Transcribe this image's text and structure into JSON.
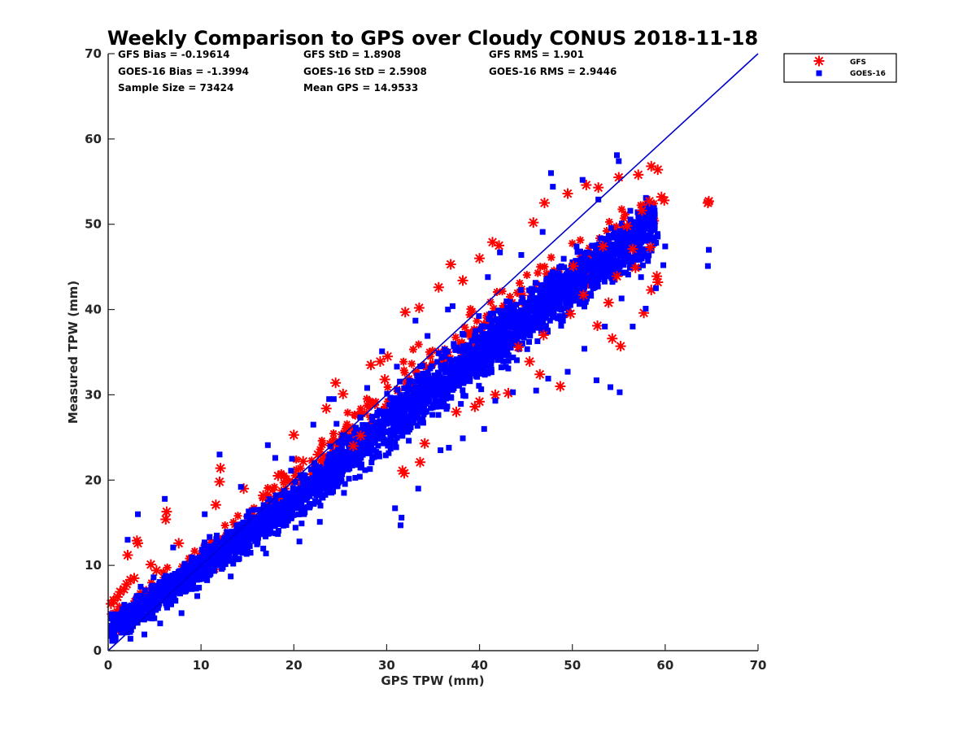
{
  "chart_data": {
    "type": "scatter",
    "title": "Weekly Comparison to GPS over Cloudy CONUS 2018-11-18",
    "xlabel": "GPS TPW (mm)",
    "ylabel": "Measured TPW (mm)",
    "xlim": [
      0,
      70
    ],
    "ylim": [
      0,
      70
    ],
    "xticks": [
      "0",
      "10",
      "20",
      "30",
      "40",
      "50",
      "60",
      "70"
    ],
    "yticks": [
      "0",
      "10",
      "20",
      "30",
      "40",
      "50",
      "60",
      "70"
    ],
    "grid": false,
    "legend_position": "outside-top-right",
    "stats": {
      "gfs_bias": "GFS Bias = -0.19614",
      "gfs_std": "GFS StD = 1.8908",
      "gfs_rms": "GFS RMS = 1.901",
      "goes_bias": "GOES-16 Bias = -1.3994",
      "goes_std": "GOES-16 StD = 2.5908",
      "goes_rms": "GOES-16 RMS = 2.9446",
      "sample_size": "Sample Size = 73424",
      "mean_gps": "Mean GPS = 14.9533"
    },
    "reference_line": {
      "label": "1:1",
      "from": [
        0,
        0
      ],
      "to": [
        70,
        70
      ],
      "color": "#0000cc"
    },
    "series": [
      {
        "name": "GFS",
        "marker": "asterisk",
        "color": "#ff0000",
        "points": [
          [
            0.3,
            5.5
          ],
          [
            0.6,
            5.9
          ],
          [
            1.0,
            6.3
          ],
          [
            1.3,
            6.9
          ],
          [
            1.7,
            7.2
          ],
          [
            2.0,
            7.8
          ],
          [
            2.4,
            8.3
          ],
          [
            2.8,
            8.5
          ],
          [
            2.1,
            11.2
          ],
          [
            3.2,
            12.6
          ],
          [
            3.1,
            12.9
          ],
          [
            6.2,
            15.4
          ],
          [
            6.3,
            16.3
          ],
          [
            7.6,
            12.6
          ],
          [
            4.6,
            10.1
          ],
          [
            5.2,
            9.4
          ],
          [
            12.0,
            19.8
          ],
          [
            12.1,
            21.4
          ],
          [
            16.7,
            18.2
          ],
          [
            20.0,
            25.3
          ],
          [
            24.5,
            31.4
          ],
          [
            22.6,
            23.0
          ],
          [
            27.2,
            25.2
          ],
          [
            26.4,
            24.0
          ],
          [
            28.3,
            33.5
          ],
          [
            29.3,
            33.9
          ],
          [
            30.1,
            34.5
          ],
          [
            31.7,
            21.1
          ],
          [
            31.9,
            20.8
          ],
          [
            33.6,
            22.1
          ],
          [
            34.1,
            24.3
          ],
          [
            29.8,
            31.8
          ],
          [
            32.0,
            39.7
          ],
          [
            33.5,
            40.2
          ],
          [
            35.6,
            42.6
          ],
          [
            36.9,
            45.3
          ],
          [
            38.2,
            43.4
          ],
          [
            40.0,
            46.0
          ],
          [
            41.4,
            47.9
          ],
          [
            42.1,
            47.5
          ],
          [
            37.5,
            28.0
          ],
          [
            39.5,
            28.6
          ],
          [
            40.0,
            29.2
          ],
          [
            41.7,
            30.0
          ],
          [
            43.1,
            30.2
          ],
          [
            45.4,
            33.9
          ],
          [
            46.5,
            32.4
          ],
          [
            48.7,
            31.0
          ],
          [
            45.8,
            50.2
          ],
          [
            47.0,
            52.5
          ],
          [
            49.5,
            53.6
          ],
          [
            51.5,
            54.6
          ],
          [
            52.8,
            54.3
          ],
          [
            55.0,
            55.5
          ],
          [
            57.1,
            55.8
          ],
          [
            58.5,
            56.8
          ],
          [
            59.2,
            56.4
          ],
          [
            59.6,
            53.2
          ],
          [
            59.9,
            52.8
          ],
          [
            58.3,
            52.7
          ],
          [
            57.5,
            51.6
          ],
          [
            58.4,
            47.3
          ],
          [
            59.1,
            43.9
          ],
          [
            59.2,
            43.2
          ],
          [
            58.5,
            42.3
          ],
          [
            57.7,
            39.6
          ],
          [
            55.2,
            35.7
          ],
          [
            54.3,
            36.6
          ],
          [
            52.7,
            38.1
          ],
          [
            53.9,
            40.8
          ],
          [
            54.8,
            43.9
          ],
          [
            56.8,
            44.9
          ],
          [
            64.6,
            52.5
          ],
          [
            64.7,
            52.7
          ],
          [
            11.6,
            17.1
          ],
          [
            14.6,
            19.0
          ],
          [
            18.3,
            20.5
          ],
          [
            21.0,
            22.2
          ],
          [
            23.5,
            28.4
          ],
          [
            25.3,
            30.1
          ],
          [
            44.2,
            35.6
          ],
          [
            46.9,
            37.0
          ],
          [
            49.8,
            39.5
          ],
          [
            51.2,
            41.7
          ],
          [
            53.3,
            47.4
          ],
          [
            55.9,
            49.8
          ],
          [
            56.5,
            47.1
          ],
          [
            50.1,
            45.1
          ]
        ]
      },
      {
        "name": "GOES-16",
        "marker": "square",
        "color": "#0000ff",
        "points": [
          [
            2.1,
            13.0
          ],
          [
            3.2,
            16.0
          ],
          [
            6.1,
            17.8
          ],
          [
            12.0,
            23.0
          ],
          [
            17.2,
            24.1
          ],
          [
            19.8,
            22.5
          ],
          [
            22.1,
            26.5
          ],
          [
            24.3,
            29.5
          ],
          [
            30.9,
            16.7
          ],
          [
            31.6,
            15.6
          ],
          [
            31.5,
            14.7
          ],
          [
            28.2,
            21.3
          ],
          [
            33.4,
            19.0
          ],
          [
            35.8,
            23.5
          ],
          [
            36.7,
            23.8
          ],
          [
            38.2,
            24.9
          ],
          [
            40.5,
            26.0
          ],
          [
            41.7,
            29.3
          ],
          [
            43.6,
            30.3
          ],
          [
            46.1,
            30.5
          ],
          [
            47.4,
            31.9
          ],
          [
            49.5,
            32.7
          ],
          [
            51.3,
            35.4
          ],
          [
            52.6,
            31.7
          ],
          [
            54.1,
            30.9
          ],
          [
            55.1,
            30.3
          ],
          [
            56.5,
            38.0
          ],
          [
            57.9,
            40.1
          ],
          [
            59.0,
            42.5
          ],
          [
            59.8,
            45.2
          ],
          [
            60.0,
            47.4
          ],
          [
            64.7,
            47.0
          ],
          [
            64.6,
            45.1
          ],
          [
            47.7,
            56.0
          ],
          [
            47.9,
            54.4
          ],
          [
            51.1,
            55.2
          ],
          [
            55.0,
            57.4
          ],
          [
            54.8,
            58.1
          ],
          [
            52.8,
            52.9
          ],
          [
            42.2,
            46.7
          ],
          [
            36.6,
            40.0
          ],
          [
            33.1,
            38.7
          ],
          [
            29.5,
            35.1
          ],
          [
            23.8,
            29.5
          ],
          [
            18.0,
            22.6
          ],
          [
            14.3,
            19.2
          ],
          [
            10.4,
            16.0
          ],
          [
            7.0,
            12.1
          ],
          [
            4.9,
            8.6
          ],
          [
            3.5,
            7.5
          ],
          [
            1.4,
            2.6
          ],
          [
            2.4,
            1.4
          ],
          [
            3.9,
            1.9
          ],
          [
            5.6,
            3.2
          ],
          [
            7.9,
            4.4
          ],
          [
            9.6,
            6.4
          ],
          [
            13.2,
            8.7
          ],
          [
            17.0,
            11.4
          ],
          [
            20.6,
            12.8
          ],
          [
            22.8,
            15.1
          ],
          [
            25.4,
            18.5
          ],
          [
            27.1,
            20.4
          ],
          [
            29.9,
            22.9
          ],
          [
            32.6,
            26.7
          ],
          [
            35.9,
            29.2
          ],
          [
            37.8,
            32.8
          ],
          [
            39.6,
            34.5
          ],
          [
            43.0,
            35.1
          ],
          [
            46.2,
            39.5
          ],
          [
            48.0,
            41.8
          ],
          [
            50.2,
            44.0
          ],
          [
            52.7,
            46.4
          ],
          [
            56.2,
            45.6
          ],
          [
            58.1,
            46.2
          ],
          [
            57.4,
            43.8
          ],
          [
            55.3,
            41.3
          ],
          [
            53.5,
            38.0
          ],
          [
            11.7,
            13.5
          ],
          [
            15.6,
            16.5
          ],
          [
            19.7,
            21.1
          ],
          [
            24.6,
            26.6
          ],
          [
            27.9,
            30.8
          ],
          [
            31.1,
            33.3
          ],
          [
            34.4,
            36.9
          ],
          [
            37.1,
            40.4
          ],
          [
            40.9,
            43.8
          ],
          [
            44.5,
            46.4
          ],
          [
            46.8,
            49.1
          ]
        ]
      }
    ],
    "clusters": [
      {
        "series": "GOES-16",
        "x": [
          0.3,
          10
        ],
        "y_center": [
          2.5,
          9.8
        ],
        "spread": 1.6,
        "n": 650
      },
      {
        "series": "GOES-16",
        "x": [
          10,
          20
        ],
        "y_center": [
          9.8,
          17.4
        ],
        "spread": 2.0,
        "n": 650
      },
      {
        "series": "GOES-16",
        "x": [
          20,
          30
        ],
        "y_center": [
          17.4,
          26.5
        ],
        "spread": 2.4,
        "n": 550
      },
      {
        "series": "GOES-16",
        "x": [
          30,
          40
        ],
        "y_center": [
          26.5,
          34.8
        ],
        "spread": 2.9,
        "n": 650
      },
      {
        "series": "GOES-16",
        "x": [
          40,
          50
        ],
        "y_center": [
          34.8,
          43.0
        ],
        "spread": 3.1,
        "n": 650
      },
      {
        "series": "GOES-16",
        "x": [
          50,
          59
        ],
        "y_center": [
          43.0,
          50.0
        ],
        "spread": 3.0,
        "n": 550
      },
      {
        "series": "GFS",
        "x": [
          0.3,
          12
        ],
        "y_center": [
          3.0,
          12.5
        ],
        "spread": 1.7,
        "n": 90
      },
      {
        "series": "GFS",
        "x": [
          12,
          30
        ],
        "y_center": [
          12.5,
          29.5
        ],
        "spread": 2.3,
        "n": 120
      },
      {
        "series": "GFS",
        "x": [
          30,
          59
        ],
        "y_center": [
          29.5,
          51.5
        ],
        "spread": 3.6,
        "n": 200
      }
    ]
  }
}
